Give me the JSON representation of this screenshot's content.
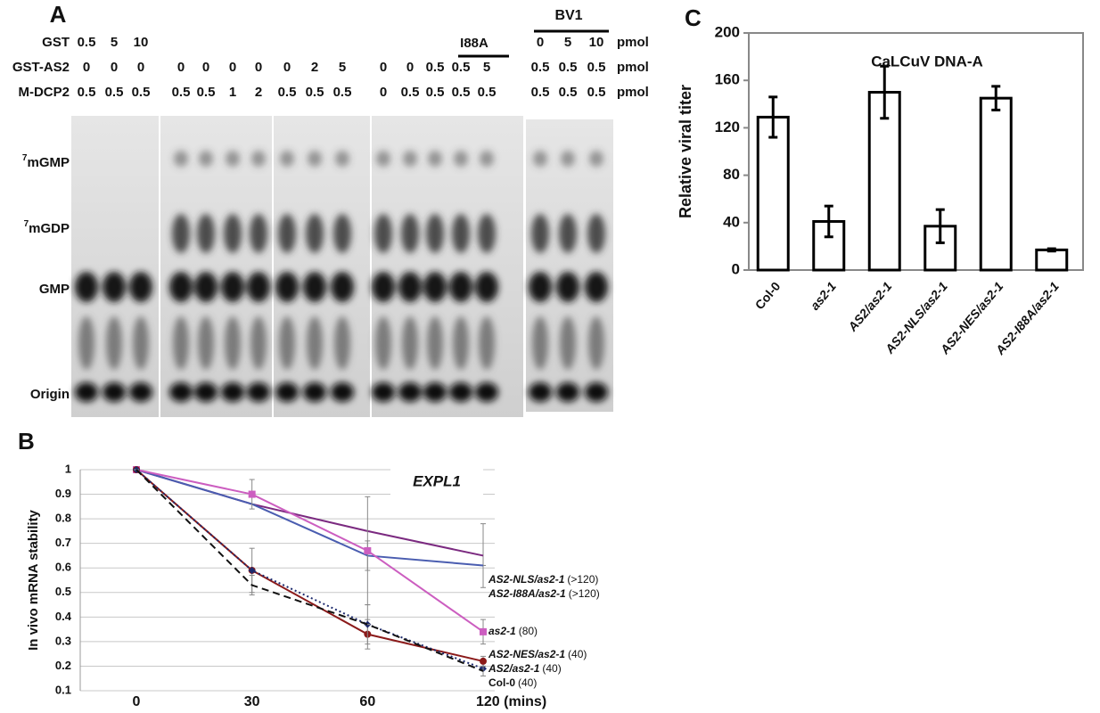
{
  "gel": {
    "panel_label": "A",
    "rows": [
      {
        "label": "GST",
        "unit": "pmol",
        "values": [
          "0.5",
          "5",
          "10",
          null,
          null,
          null,
          null,
          null,
          null,
          null,
          null,
          null,
          null,
          null,
          null,
          "0",
          "5",
          "10"
        ]
      },
      {
        "label": "GST-AS2",
        "unit": "pmol",
        "values": [
          "0",
          "0",
          "0",
          "0",
          "0",
          "0",
          "0",
          "0",
          "2",
          "5",
          "0",
          "0",
          "0.5",
          "0.5",
          "5",
          "0.5",
          "0.5",
          "0.5"
        ]
      },
      {
        "label": "M-DCP2",
        "unit": "pmol",
        "values": [
          "0.5",
          "0.5",
          "0.5",
          "0.5",
          "0.5",
          "1",
          "2",
          "0.5",
          "0.5",
          "0.5",
          "0",
          "0.5",
          "0.5",
          "0.5",
          "0.5",
          "0.5",
          "0.5",
          "0.5"
        ]
      }
    ],
    "group_labels": [
      "I88A",
      "BV1"
    ],
    "bands": [
      {
        "sup": "7",
        "text": "mGMP"
      },
      {
        "sup": "7",
        "text": "mGDP"
      },
      {
        "text": "GMP"
      },
      {
        "text": "Origin"
      }
    ]
  },
  "chart_data": [
    {
      "type": "line",
      "panel_label": "B",
      "y_label": "In vivo mRNA stability",
      "annotation": "EXPL1",
      "categories": [
        "0",
        "30",
        "60",
        "120 (mins)"
      ],
      "ylim": [
        0.1,
        1
      ],
      "yticks": [
        0.1,
        0.2,
        0.3,
        0.4,
        0.5,
        0.6,
        0.7,
        0.8,
        0.9,
        1
      ],
      "grid": true,
      "series": [
        {
          "name": "AS2-NLS/as2-1",
          "note": "(>120)",
          "italic": true,
          "color": "#7b2a80",
          "dash": "solid",
          "marker": "none",
          "values": [
            1,
            0.86,
            0.75,
            0.65
          ],
          "errors": [
            0,
            0,
            0,
            0.13
          ]
        },
        {
          "name": "AS2-I88A/as2-1",
          "note": "(>120)",
          "italic": true,
          "color": "#4a5db0",
          "dash": "solid",
          "marker": "none",
          "values": [
            1,
            0.86,
            0.65,
            0.61
          ],
          "errors": [
            0,
            0,
            0.06,
            0
          ]
        },
        {
          "name": "as2-1",
          "note": "(80)",
          "italic": true,
          "color": "#cc5ec0",
          "dash": "solid",
          "marker": "square",
          "values": [
            1,
            0.9,
            0.67,
            0.34
          ],
          "errors": [
            0,
            0.06,
            0.22,
            0.05
          ]
        },
        {
          "name": "AS2-NES/as2-1",
          "note": "(40)",
          "italic": true,
          "color": "#8b1a1a",
          "dash": "solid",
          "marker": "circle",
          "values": [
            1,
            0.59,
            0.33,
            0.22
          ],
          "errors": [
            0,
            0.09,
            0.06,
            0.02
          ]
        },
        {
          "name": "AS2/as2-1",
          "note": "(40)",
          "italic": true,
          "color": "#1d2a6e",
          "dash": "dotted",
          "marker": "diamond",
          "values": [
            1,
            0.59,
            0.37,
            0.19
          ],
          "errors": [
            0,
            0,
            0.08,
            0
          ]
        },
        {
          "name": "Col-0",
          "note": "(40)",
          "italic": false,
          "color": "#111111",
          "dash": "dashed",
          "marker": "none",
          "values": [
            1,
            0.53,
            0.37,
            0.18
          ],
          "errors": [
            0,
            0.04,
            0,
            0.02
          ]
        }
      ]
    },
    {
      "type": "bar",
      "panel_label": "C",
      "y_label": "Relative viral titer",
      "annotation": "CaLCuV DNA-A",
      "categories": [
        "Col-0",
        "as2-1",
        "AS2/as2-1",
        "AS2-NLS/as2-1",
        "AS2-NES/as2-1",
        "AS2-I88A/as2-1"
      ],
      "values": [
        129,
        41,
        150,
        37,
        145,
        17
      ],
      "errors": [
        17,
        13,
        22,
        14,
        10,
        1
      ],
      "color": "#ffffff",
      "ylim": [
        0,
        200
      ],
      "yticks": [
        0,
        40,
        80,
        120,
        160,
        200
      ],
      "grid": false
    }
  ]
}
